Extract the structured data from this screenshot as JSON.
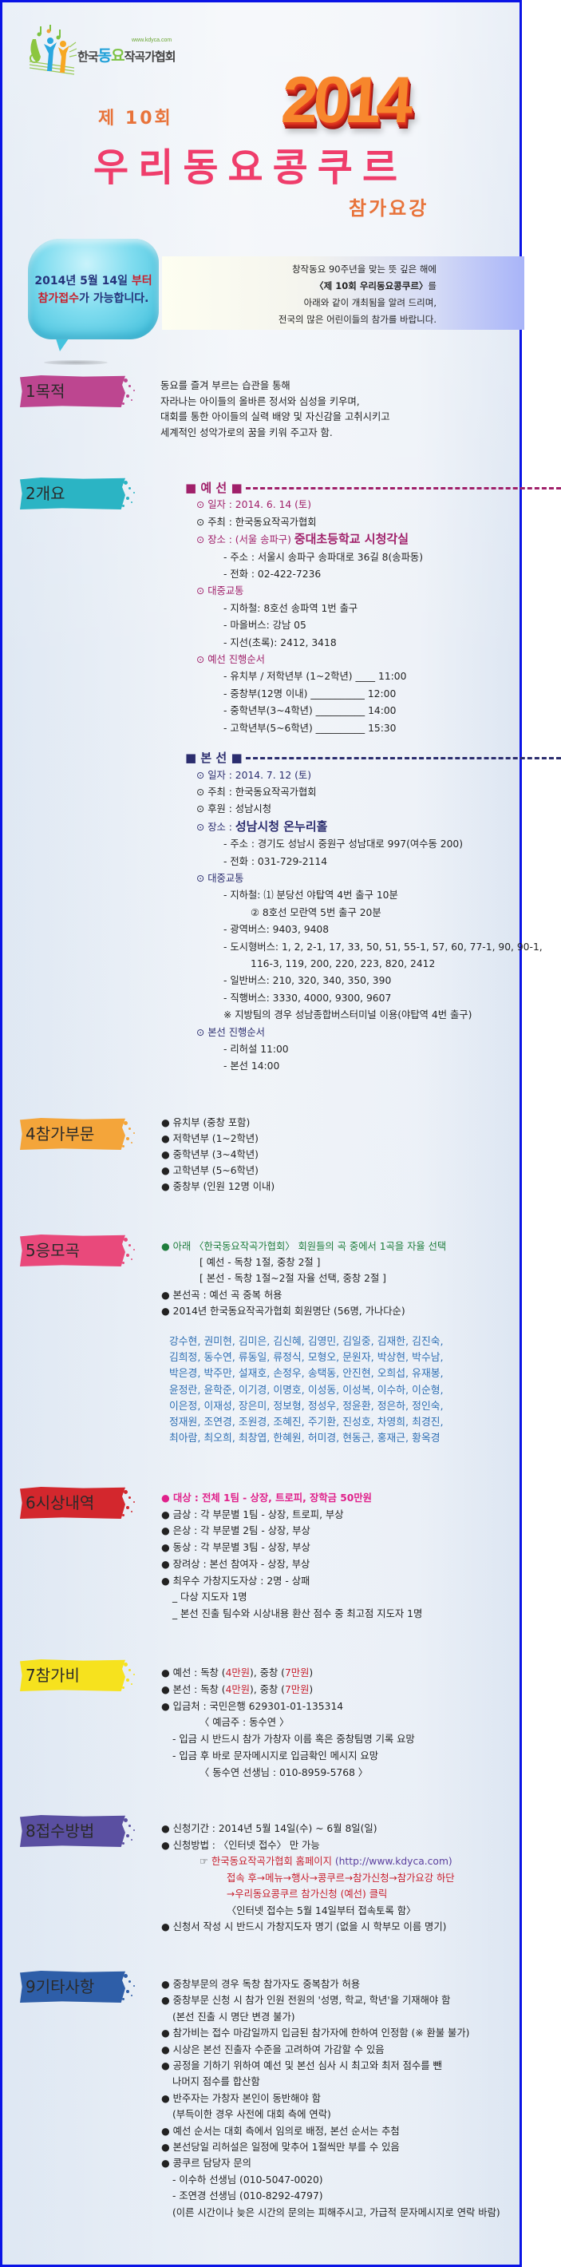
{
  "logo": {
    "url": "www.kdyca.com",
    "name_parts": [
      "한국",
      "동",
      "요",
      "작곡가협회"
    ]
  },
  "header": {
    "ordinal": "제 10회",
    "year": "2014",
    "title": "우리동요콩쿠르",
    "subtitle": "참가요강"
  },
  "bubble": {
    "line1": [
      {
        "t": "2014년 5월 14일 "
      },
      {
        "t": "부터",
        "c": "red"
      }
    ],
    "line2": [
      {
        "t": "참가접수",
        "c": "red"
      },
      {
        "t": "가 가능합니다."
      }
    ]
  },
  "intro": [
    [
      {
        "t": "창작동요 90주년을 맞는 뜻 깊은 해에"
      }
    ],
    [
      {
        "t": "〈제 10회 우리동요콩쿠르〉",
        "b": true
      },
      {
        "t": "를"
      }
    ],
    [
      {
        "t": "아래와 같이 개최됨을 알려 드리며,"
      }
    ],
    [
      {
        "t": "전국의 많은 어린이들의 참가를 바랍니다."
      }
    ]
  ],
  "colors": {
    "magenta": "#a0206a",
    "navy": "#2b2d6e",
    "green": "#1e7d3c",
    "pink": "#e0208a",
    "red": "#c8202e",
    "purple": "#5b3f9e",
    "blue": "#2f6fb3"
  },
  "sections": [
    {
      "id": "s1",
      "label": "1목적",
      "color": "#bd4690",
      "lines": [
        {
          "segs": [
            {
              "t": "동요를 즐겨 부르는 습관을 통해"
            }
          ]
        },
        {
          "segs": [
            {
              "t": "자라나는 아이들의 올바른 정서와 심성을 키우며,"
            }
          ]
        },
        {
          "segs": [
            {
              "t": "대회를 통한 아이들의 실력 배양 및 자신감을 고취시키고"
            }
          ]
        },
        {
          "segs": [
            {
              "t": "세계적인 성악가로의 꿈을 키워 주고자 함."
            }
          ]
        }
      ]
    },
    {
      "id": "s2",
      "label": "2개요",
      "color": "#2bb4c4",
      "lines": [
        {
          "kind": "heading",
          "color": "magenta",
          "segs": [
            {
              "t": "■ 예 선 ■"
            }
          ]
        },
        {
          "lv": 1,
          "color": "magenta",
          "segs": [
            {
              "t": "⊙ 일자 : 2014. 6. 14 (토)"
            }
          ]
        },
        {
          "lv": 1,
          "segs": [
            {
              "t": "⊙ 주최 : 한국동요작곡가협회"
            }
          ]
        },
        {
          "lv": 1,
          "color": "magenta",
          "segs": [
            {
              "t": "⊙ 장소 : (서울 송파구) "
            },
            {
              "t": "중대초등학교 시청각실",
              "c": "big"
            }
          ]
        },
        {
          "lv": 2,
          "segs": [
            {
              "t": "- 주소 : 서울시 송파구 송파대로 36길 8(송파동)"
            }
          ]
        },
        {
          "lv": 2,
          "segs": [
            {
              "t": "- 전화 : 02-422-7236"
            }
          ]
        },
        {
          "lv": 1,
          "color": "magenta",
          "segs": [
            {
              "t": "⊙ 대중교통"
            }
          ]
        },
        {
          "lv": 2,
          "segs": [
            {
              "t": "- 지하철: 8호선 송파역 1번 출구"
            }
          ]
        },
        {
          "lv": 2,
          "segs": [
            {
              "t": "- 마을버스: 강남 05"
            }
          ]
        },
        {
          "lv": 2,
          "segs": [
            {
              "t": "- 지선(초록): 2412, 3418"
            }
          ]
        },
        {
          "lv": 1,
          "color": "magenta",
          "segs": [
            {
              "t": "⊙ 예선 진행순서"
            }
          ]
        },
        {
          "lv": 2,
          "segs": [
            {
              "t": "- 유치부 / 저학년부 (1~2학년) ____ 11:00"
            }
          ]
        },
        {
          "lv": 2,
          "segs": [
            {
              "t": "- 중창부(12명 이내) ___________ 12:00"
            }
          ]
        },
        {
          "lv": 2,
          "segs": [
            {
              "t": "- 중학년부(3~4학년) __________ 14:00"
            }
          ]
        },
        {
          "lv": 2,
          "segs": [
            {
              "t": "- 고학년부(5~6학년) __________ 15:30"
            }
          ]
        },
        {
          "kind": "heading",
          "color": "navy",
          "segs": [
            {
              "t": "■ 본 선 ■"
            }
          ]
        },
        {
          "lv": 1,
          "color": "navy",
          "segs": [
            {
              "t": "⊙ 일자 : 2014. 7. 12 (토)"
            }
          ]
        },
        {
          "lv": 1,
          "segs": [
            {
              "t": "⊙ 주최 : 한국동요작곡가협회"
            }
          ]
        },
        {
          "lv": 1,
          "segs": [
            {
              "t": "⊙ 후원 : 성남시청"
            }
          ]
        },
        {
          "lv": 1,
          "color": "navy",
          "segs": [
            {
              "t": "⊙ 장소 : "
            },
            {
              "t": "성남시청 온누리홀",
              "c": "big"
            }
          ]
        },
        {
          "lv": 2,
          "segs": [
            {
              "t": "- 주소 : 경기도 성남시 중원구 성남대로 997(여수동 200)"
            }
          ]
        },
        {
          "lv": 2,
          "segs": [
            {
              "t": "- 전화 : 031-729-2114"
            }
          ]
        },
        {
          "lv": 1,
          "color": "navy",
          "segs": [
            {
              "t": "⊙ 대중교통"
            }
          ]
        },
        {
          "lv": 2,
          "segs": [
            {
              "t": "- 지하철: ⑴ 분당선 야탑역 4번 출구 10분"
            }
          ]
        },
        {
          "lv": 3,
          "segs": [
            {
              "t": "② 8호선 모란역 5번 출구 20분"
            }
          ]
        },
        {
          "lv": 2,
          "segs": [
            {
              "t": "- 광역버스: 9403, 9408"
            }
          ]
        },
        {
          "lv": 2,
          "segs": [
            {
              "t": "- 도시형버스: 1, 2, 2-1, 17, 33, 50, 51, 55-1, 57, 60, 77-1, 90, 90-1,"
            }
          ]
        },
        {
          "lv": 3,
          "extra": true,
          "segs": [
            {
              "t": "116-3, 119, 200, 220, 223, 820, 2412"
            }
          ]
        },
        {
          "lv": 2,
          "segs": [
            {
              "t": "- 일반버스: 210, 320, 340, 350, 390"
            }
          ]
        },
        {
          "lv": 2,
          "segs": [
            {
              "t": "- 직행버스: 3330, 4000, 9300, 9607"
            }
          ]
        },
        {
          "lv": 2,
          "segs": [
            {
              "t": "※ 지방팀의 경우 성남종합버스터미널 이용(야탑역 4번 출구)"
            }
          ]
        },
        {
          "lv": 1,
          "color": "navy",
          "segs": [
            {
              "t": "⊙ 본선 진행순서"
            }
          ]
        },
        {
          "lv": 2,
          "segs": [
            {
              "t": "- 리허설  11:00"
            }
          ]
        },
        {
          "lv": 2,
          "segs": [
            {
              "t": "- 본선    14:00"
            }
          ]
        }
      ]
    },
    {
      "id": "s4",
      "label": "4참가부문",
      "color": "#f4a53a",
      "lines": [
        {
          "segs": [
            {
              "t": "● 유치부 (중창 포함)"
            }
          ]
        },
        {
          "segs": [
            {
              "t": "● 저학년부 (1~2학년)"
            }
          ]
        },
        {
          "segs": [
            {
              "t": "● 중학년부 (3~4학년)"
            }
          ]
        },
        {
          "segs": [
            {
              "t": "● 고학년부 (5~6학년)"
            }
          ]
        },
        {
          "segs": [
            {
              "t": "● 중창부 (인원 12명 이내)"
            }
          ]
        }
      ]
    },
    {
      "id": "s5",
      "label": "5응모곡",
      "color": "#e9497b",
      "lines": [
        {
          "color": "green",
          "segs": [
            {
              "t": "● 아래 〈한국동요작곡가협회〉 회원들의 곡 중에서 1곡을 자율 선택"
            }
          ]
        },
        {
          "lv": 2,
          "segs": [
            {
              "t": "[ 예선 - 독창 1절, 중창 2절 ]"
            }
          ]
        },
        {
          "lv": 2,
          "segs": [
            {
              "t": "[ 본선 - 독창 1절~2절 자율 선택, 중창 2절 ]"
            }
          ]
        },
        {
          "segs": [
            {
              "t": "● 본선곡 : 예선 곡 중복 허용"
            }
          ]
        },
        {
          "segs": [
            {
              "t": "● 2014년 한국동요작곡가협회 회원명단 (56명, 가나다순)"
            }
          ]
        },
        {
          "kind": "names",
          "segs": [
            {
              "t": "강수현, 권미현, 김미은, 김신혜, 김영민, 김일중, 김재한, 김진숙,"
            }
          ]
        },
        {
          "kind": "name",
          "segs": [
            {
              "t": "김희정, 동수연, 류동일, 류정식, 모형오, 문원자, 박상현, 박수남,"
            }
          ]
        },
        {
          "kind": "name",
          "segs": [
            {
              "t": "박은경, 박주만, 설재호, 손정우, 송택동, 안진현, 오희섭, 유재봉,"
            }
          ]
        },
        {
          "kind": "name",
          "segs": [
            {
              "t": "윤정란, 윤학준, 이기경, 이명호, 이성동, 이성복, 이수하, 이순형,"
            }
          ]
        },
        {
          "kind": "name",
          "segs": [
            {
              "t": "이은정, 이재성, 장은미, 정보형, 정성우, 정윤환, 정은하, 정인숙,"
            }
          ]
        },
        {
          "kind": "name",
          "segs": [
            {
              "t": "정재원, 조연경, 조원경, 조혜진, 주기환, 진성호, 차영희, 최경진,"
            }
          ]
        },
        {
          "kind": "name",
          "segs": [
            {
              "t": "최아람, 최오희, 최창엽, 한혜원, 허미경, 현동근, 홍재근, 황옥경"
            }
          ]
        }
      ]
    },
    {
      "id": "s6",
      "label": "6시상내역",
      "color": "#d3272d",
      "lines": [
        {
          "color": "pink",
          "bold": true,
          "segs": [
            {
              "t": "● 대상 : 전체 1팀 - 상장, 트로피, 장학금 50만원"
            }
          ]
        },
        {
          "segs": [
            {
              "t": "● 금상 : 각 부문별 1팀 - 상장, 트로피, 부상"
            }
          ]
        },
        {
          "segs": [
            {
              "t": "● 은상 : 각 부문별 2팀 - 상장, 부상"
            }
          ]
        },
        {
          "segs": [
            {
              "t": "● 동상 : 각 부문별 3팀 - 상장, 부상"
            }
          ]
        },
        {
          "segs": [
            {
              "t": "● 장려상 : 본선 참여자 - 상장, 부상"
            }
          ]
        },
        {
          "segs": [
            {
              "t": "● 최우수 가창지도자상 : 2명 - 상패"
            }
          ]
        },
        {
          "lv": 1,
          "segs": [
            {
              "t": "_ 다상 지도자 1명"
            }
          ]
        },
        {
          "lv": 1,
          "segs": [
            {
              "t": "_ 본선 진출 팀수와 시상내용 환산 점수 중 최고점 지도자 1명"
            }
          ]
        }
      ]
    },
    {
      "id": "s7",
      "label": "7참가비",
      "color": "#f6e21e",
      "lines": [
        {
          "segs": [
            {
              "t": "● 예선 : 독창 ("
            },
            {
              "t": "4만원",
              "c": "red"
            },
            {
              "t": "), 중창 ("
            },
            {
              "t": "7만원",
              "c": "red"
            },
            {
              "t": ")"
            }
          ]
        },
        {
          "segs": [
            {
              "t": "● 본선 : 독창 ("
            },
            {
              "t": "4만원",
              "c": "red"
            },
            {
              "t": "), 중창 ("
            },
            {
              "t": "7만원",
              "c": "red"
            },
            {
              "t": ")"
            }
          ]
        },
        {
          "segs": [
            {
              "t": "● 입금처 : 국민은행 629301-01-135314"
            }
          ]
        },
        {
          "lv": 2,
          "segs": [
            {
              "t": "〈 예금주 : 동수연 〉"
            }
          ]
        },
        {
          "lv": 1,
          "segs": [
            {
              "t": "- 입금 시 반드시 참가 가창자 이름 혹은 중창팀명 기록 요망"
            }
          ]
        },
        {
          "lv": 1,
          "segs": [
            {
              "t": "- 입금 후 바로 문자메시지로 입금확인 메시지 요망"
            }
          ]
        },
        {
          "lv": 2,
          "segs": [
            {
              "t": "〈 동수연 선생님 : 010-8959-5768 〉"
            }
          ]
        }
      ]
    },
    {
      "id": "s8",
      "label": "8접수방법",
      "color": "#5a4fa1",
      "lines": [
        {
          "segs": [
            {
              "t": "● 신청기간 : 2014년 5월 14일(수) ~ 6월 8일(일)"
            }
          ]
        },
        {
          "segs": [
            {
              "t": "● 신청방법 : 〈인터넷 접수〉 만 가능"
            }
          ]
        },
        {
          "lv": 2,
          "segs": [
            {
              "t": "☞ "
            },
            {
              "t": "한국동요작곡가협회 홈페이지",
              "c": "red"
            },
            {
              "t": " (http://www.kdyca.com)",
              "c": "purple"
            }
          ]
        },
        {
          "lv": 3,
          "color": "red",
          "segs": [
            {
              "t": "접속 후→메뉴→행사→콩쿠르→참가신청→참가요강 하단"
            }
          ]
        },
        {
          "lv": 3,
          "color": "red",
          "segs": [
            {
              "t": " →우리동요콩쿠르 참가신청 (예선) 클릭"
            }
          ]
        },
        {
          "lv": 3,
          "segs": [
            {
              "t": "〈인터넷 접수는 5월 14일부터 접속토록 함〉"
            }
          ]
        },
        {
          "segs": [
            {
              "t": "● 신청서 작성 시 반드시 가창지도자 명기 (없을 시 학부모 이름 명기)"
            }
          ]
        }
      ]
    },
    {
      "id": "s9",
      "label": "9기타사항",
      "color": "#2e5ea8",
      "lines": [
        {
          "segs": [
            {
              "t": "● 중창부문의 경우 독창 참가자도 중복참가 허용"
            }
          ]
        },
        {
          "segs": [
            {
              "t": "● 중창부문 신청 시 참가 인원 전원의 '성명, 학교, 학년'을 기재해야 함"
            }
          ]
        },
        {
          "lv": 1,
          "segs": [
            {
              "t": "(본선 진출 시 명단 변경 불가)"
            }
          ]
        },
        {
          "segs": [
            {
              "t": "● 참가비는 접수 마감일까지 입금된 참가자에 한하여 인정함 (※ 환불 불가)"
            }
          ]
        },
        {
          "segs": [
            {
              "t": "● 시상은 본선 진출자 수준을 고려하여 가감할 수 있음"
            }
          ]
        },
        {
          "segs": [
            {
              "t": "● 공정을 기하기 위하여 예선 및 본선 심사 시 최고와 최저 점수를 뺀"
            }
          ]
        },
        {
          "lv": 1,
          "segs": [
            {
              "t": "나머지 점수를 합산함"
            }
          ]
        },
        {
          "segs": [
            {
              "t": "● 반주자는 가창자 본인이 동반해야 함"
            }
          ]
        },
        {
          "lv": 1,
          "segs": [
            {
              "t": "(부득이한 경우 사전에 대회 측에 연락)"
            }
          ]
        },
        {
          "segs": [
            {
              "t": "● 예선 순서는 대회 측에서 임의로 배정, 본선 순서는 추첨"
            }
          ]
        },
        {
          "segs": [
            {
              "t": "● 본선당일 리허설은 일정에 맞추어 1절씩만 부를 수 있음"
            }
          ]
        },
        {
          "segs": [
            {
              "t": "● 콩쿠르 담당자 문의"
            }
          ]
        },
        {
          "lv": 1,
          "segs": [
            {
              "t": "- 이수하 선생님 (010-5047-0020)"
            }
          ]
        },
        {
          "lv": 1,
          "segs": [
            {
              "t": "- 조연경 선생님 (010-8292-4797)"
            }
          ]
        },
        {
          "lv": 1,
          "segs": [
            {
              "t": "(이른 시간이나 늦은 시간의 문의는 피해주시고, 가급적 문자메시지로 연락 바람)"
            }
          ]
        }
      ]
    }
  ]
}
